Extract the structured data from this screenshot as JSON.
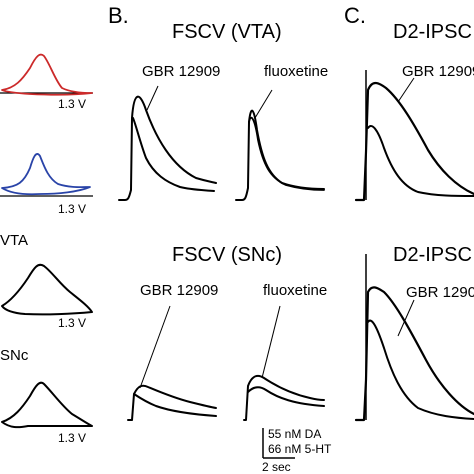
{
  "panels": {
    "b": "B.",
    "c": "C."
  },
  "titles": {
    "fscv_vta": "FSCV (VTA)",
    "fscv_snc": "FSCV (SNc)",
    "ipsc_top": "D2-IPSC",
    "ipsc_bottom": "D2-IPSC"
  },
  "drugs": {
    "gbr": "GBR 12909",
    "fluoxetine": "fluoxetine"
  },
  "voltammograms": {
    "voltage_label": "1.3 V",
    "vta_label": "VTA",
    "snc_label": "SNc",
    "colors": [
      "#cc2a2a",
      "#2a44a8",
      "#000000",
      "#000000"
    ]
  },
  "scale_bar": {
    "da": "55 nM DA",
    "ht": "66 nM 5-HT",
    "time": "2 sec"
  }
}
